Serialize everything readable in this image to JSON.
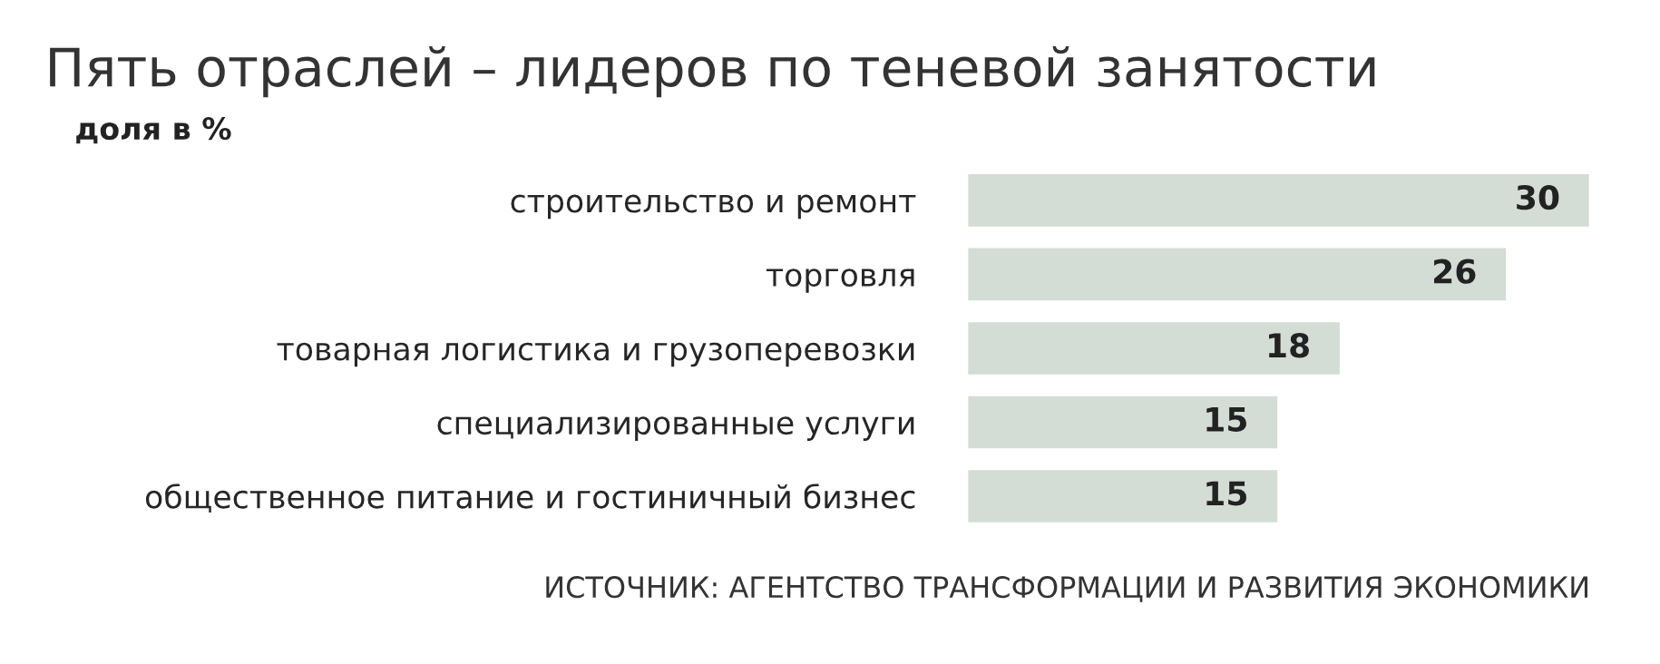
{
  "chart_data": {
    "type": "bar",
    "orientation": "horizontal",
    "title": "Пять отраслей – лидеров по теневой занятости",
    "subtitle": "доля в %",
    "categories": [
      "строительство и ремонт",
      "торговля",
      "товарная логистика и грузоперевозки",
      "специализированные услуги",
      "общественное питание и гостиничный бизнес"
    ],
    "values": [
      30,
      26,
      18,
      15,
      15
    ],
    "color": "#d3ddd6",
    "data_labels": true,
    "grid": false,
    "legend": false,
    "annotations": [
      "ИСТОЧНИК: АГЕНТСТВО ТРАНСФОРМАЦИИ И РАЗВИТИЯ ЭКОНОМИКИ"
    ]
  }
}
